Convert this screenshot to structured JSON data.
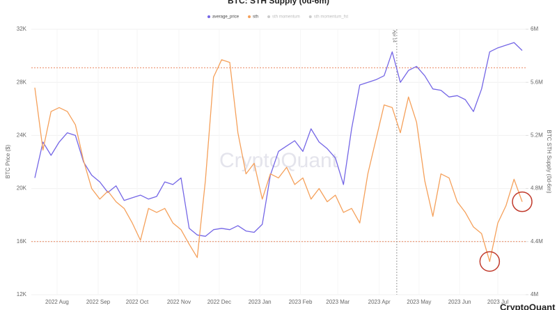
{
  "chart_data": {
    "type": "line",
    "title": "BTC: STH Supply (0d-6m)",
    "y_label": "BTC Price ($)",
    "y2_label": "BTC STH Supply (0d-6m)",
    "watermark": "CryptoQuant",
    "logo": "CryptoQuant",
    "x": [
      0,
      1,
      2,
      3,
      4,
      5,
      6,
      7,
      8,
      9,
      10,
      11,
      12,
      13,
      14,
      15,
      16,
      17,
      18,
      19,
      20,
      21,
      22,
      23,
      24,
      25,
      26,
      27,
      28,
      29,
      30,
      31,
      32,
      33,
      34,
      35,
      36,
      37,
      38,
      39,
      40,
      41,
      42,
      43,
      44,
      45,
      46,
      47,
      48,
      49,
      50,
      51,
      52,
      53,
      54,
      55,
      56,
      57,
      58,
      59,
      60
    ],
    "xlim": [
      0,
      60
    ],
    "xticks": [
      {
        "value": 2.74,
        "label": "2022 Aug"
      },
      {
        "value": 7.8,
        "label": "2022 Sep"
      },
      {
        "value": 12.6,
        "label": "2022 Oct"
      },
      {
        "value": 17.74,
        "label": "2022 Nov"
      },
      {
        "value": 22.7,
        "label": "2022 Dec"
      },
      {
        "value": 27.7,
        "label": "2023 Jan"
      },
      {
        "value": 32.7,
        "label": "2023 Feb"
      },
      {
        "value": 37.3,
        "label": "2023 Mar"
      },
      {
        "value": 42.4,
        "label": "2023 Apr"
      },
      {
        "value": 47.3,
        "label": "2023 May"
      },
      {
        "value": 52.3,
        "label": "2023 Jun"
      },
      {
        "value": 57.0,
        "label": "2023 Jul"
      }
    ],
    "ylim": [
      12,
      32
    ],
    "yticks": [
      {
        "value": 12,
        "label": "12K"
      },
      {
        "value": 16,
        "label": "16K"
      },
      {
        "value": 20,
        "label": "20K"
      },
      {
        "value": 24,
        "label": "24K"
      },
      {
        "value": 28,
        "label": "28K"
      },
      {
        "value": 32,
        "label": "32K"
      }
    ],
    "y2lim": [
      4,
      6
    ],
    "y2ticks": [
      {
        "value": 4,
        "label": "4M"
      },
      {
        "value": 4.4,
        "label": "4.4M"
      },
      {
        "value": 4.8,
        "label": "4.8M"
      },
      {
        "value": 5.2,
        "label": "5.2M"
      },
      {
        "value": 5.6,
        "label": "5.6M"
      },
      {
        "value": 6,
        "label": "6M"
      }
    ],
    "grid": true,
    "series": [
      {
        "name": "average_price",
        "color": "#7466e6",
        "values": [
          20.8,
          23.5,
          22.5,
          23.5,
          24.2,
          24.0,
          22.0,
          21.0,
          20.5,
          19.7,
          20.2,
          19.1,
          19.3,
          19.5,
          19.2,
          19.4,
          20.5,
          20.3,
          20.8,
          17.0,
          16.5,
          16.4,
          16.9,
          17.0,
          16.9,
          17.2,
          16.8,
          16.7,
          17.3,
          21.0,
          22.8,
          23.2,
          23.6,
          22.8,
          24.5,
          23.5,
          23.0,
          22.3,
          20.3,
          24.5,
          27.8,
          28.0,
          28.2,
          28.5,
          30.3,
          28.0,
          28.9,
          29.2,
          28.5,
          27.5,
          27.4,
          26.9,
          27.0,
          26.7,
          25.8,
          27.5,
          30.3,
          30.6,
          30.8,
          31.0,
          30.4
        ]
      },
      {
        "name": "sth",
        "color": "#f5a05a",
        "axis": "y2",
        "values": [
          5.56,
          5.09,
          5.38,
          5.41,
          5.38,
          5.28,
          5.01,
          4.8,
          4.72,
          4.78,
          4.7,
          4.65,
          4.54,
          4.41,
          4.65,
          4.62,
          4.65,
          4.54,
          4.49,
          4.38,
          4.28,
          4.86,
          5.64,
          5.77,
          5.75,
          5.22,
          4.91,
          4.99,
          4.72,
          4.91,
          4.88,
          4.96,
          4.83,
          4.88,
          4.72,
          4.8,
          4.7,
          4.75,
          4.62,
          4.65,
          4.54,
          4.91,
          5.17,
          5.43,
          5.41,
          5.22,
          5.49,
          5.3,
          4.86,
          4.59,
          4.91,
          4.88,
          4.7,
          4.62,
          4.51,
          4.46,
          4.25,
          4.54,
          4.67,
          4.87,
          4.7
        ]
      }
    ],
    "hidden_legend": [
      "sth momentum",
      "sth momentum_fst"
    ],
    "reference_lines_y2": [
      5.71,
      4.4
    ],
    "vline": {
      "x": 44.56,
      "label": "Apr 14"
    },
    "highlighted_points": [
      56,
      60
    ]
  }
}
